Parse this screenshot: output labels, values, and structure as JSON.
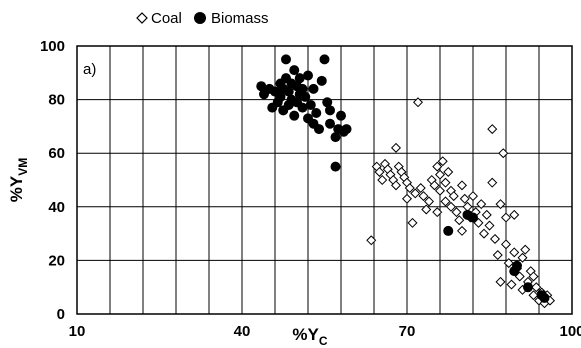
{
  "chart_data": {
    "type": "scatter",
    "panel_label": "a)",
    "xlabel_prefix": "%Y",
    "xlabel_sub": "C",
    "ylabel_prefix": "%Y",
    "ylabel_sub": "VM",
    "xlim": [
      10,
      100
    ],
    "ylim": [
      0,
      100
    ],
    "x_ticks": [
      10,
      40,
      70,
      100
    ],
    "x_ticks_labels": [
      "10",
      "40",
      "70",
      "100"
    ],
    "x_gridlines": [
      10,
      16,
      22,
      28,
      34,
      40,
      46,
      52,
      58,
      64,
      70,
      76,
      82,
      88,
      94,
      100
    ],
    "y_ticks": [
      0,
      20,
      40,
      60,
      80,
      100
    ],
    "y_ticks_labels": [
      "0",
      "20",
      "40",
      "60",
      "80",
      "100"
    ],
    "grid": true,
    "legend_position": "top-left",
    "series": [
      {
        "name": "Coal",
        "marker": "open-diamond",
        "color": "#000000",
        "points": [
          [
            63.5,
            27.5
          ],
          [
            64.5,
            55
          ],
          [
            65,
            53
          ],
          [
            65.5,
            50
          ],
          [
            66,
            56
          ],
          [
            66.5,
            54
          ],
          [
            67,
            52
          ],
          [
            67.5,
            50
          ],
          [
            68,
            62
          ],
          [
            68,
            48
          ],
          [
            68.5,
            55
          ],
          [
            69,
            53
          ],
          [
            69.5,
            51
          ],
          [
            70,
            49
          ],
          [
            70,
            43
          ],
          [
            70.5,
            47
          ],
          [
            71,
            34
          ],
          [
            71.5,
            45
          ],
          [
            72,
            79
          ],
          [
            72.5,
            47
          ],
          [
            73,
            44
          ],
          [
            73.5,
            39
          ],
          [
            74,
            42
          ],
          [
            74.5,
            50
          ],
          [
            75,
            48
          ],
          [
            75.5,
            55
          ],
          [
            75.5,
            38
          ],
          [
            76,
            46
          ],
          [
            76,
            52
          ],
          [
            76.5,
            57
          ],
          [
            77,
            49
          ],
          [
            77,
            42
          ],
          [
            77.5,
            53
          ],
          [
            78,
            46
          ],
          [
            78,
            40
          ],
          [
            78.5,
            44
          ],
          [
            79,
            38
          ],
          [
            79.5,
            35
          ],
          [
            80,
            48
          ],
          [
            80,
            31
          ],
          [
            80.5,
            43
          ],
          [
            81,
            40
          ],
          [
            81.5,
            36
          ],
          [
            82,
            44
          ],
          [
            82.5,
            38
          ],
          [
            83,
            34
          ],
          [
            83.5,
            41
          ],
          [
            84,
            30
          ],
          [
            84.5,
            37
          ],
          [
            85,
            33
          ],
          [
            85.5,
            69
          ],
          [
            85.5,
            49
          ],
          [
            86,
            28
          ],
          [
            86.5,
            22
          ],
          [
            87,
            41
          ],
          [
            87,
            12
          ],
          [
            87.5,
            60
          ],
          [
            88,
            36
          ],
          [
            88,
            26
          ],
          [
            88.5,
            19
          ],
          [
            89,
            11
          ],
          [
            89.5,
            37
          ],
          [
            89.5,
            23
          ],
          [
            90,
            17
          ],
          [
            90.5,
            14
          ],
          [
            91,
            21
          ],
          [
            91,
            9
          ],
          [
            91.5,
            24
          ],
          [
            92,
            12
          ],
          [
            92.5,
            16
          ],
          [
            93,
            7
          ],
          [
            93,
            14
          ],
          [
            93.5,
            10
          ],
          [
            94,
            5
          ],
          [
            94.5,
            8
          ],
          [
            95,
            4
          ],
          [
            95.5,
            7
          ],
          [
            96,
            5
          ]
        ]
      },
      {
        "name": "Biomass",
        "marker": "filled-circle",
        "color": "#000000",
        "points": [
          [
            43.5,
            85
          ],
          [
            44,
            82
          ],
          [
            45,
            84
          ],
          [
            45.5,
            77
          ],
          [
            46,
            83
          ],
          [
            46.5,
            79
          ],
          [
            47,
            86
          ],
          [
            47,
            81
          ],
          [
            47.5,
            84
          ],
          [
            47.5,
            76
          ],
          [
            48,
            95
          ],
          [
            48,
            88
          ],
          [
            48.5,
            83
          ],
          [
            48.5,
            78
          ],
          [
            49,
            86
          ],
          [
            49,
            80
          ],
          [
            49.5,
            91
          ],
          [
            49.5,
            74
          ],
          [
            50,
            85
          ],
          [
            50,
            79
          ],
          [
            50.5,
            82
          ],
          [
            50.5,
            88
          ],
          [
            51,
            77
          ],
          [
            51,
            84
          ],
          [
            51.5,
            81
          ],
          [
            52,
            89
          ],
          [
            52,
            73
          ],
          [
            52.5,
            78
          ],
          [
            53,
            84
          ],
          [
            53,
            71
          ],
          [
            53.5,
            75
          ],
          [
            54,
            69
          ],
          [
            54.5,
            87
          ],
          [
            55,
            95
          ],
          [
            55.5,
            79
          ],
          [
            56,
            76
          ],
          [
            56,
            71
          ],
          [
            57,
            66
          ],
          [
            57,
            55
          ],
          [
            57.5,
            69
          ],
          [
            58,
            74
          ],
          [
            58.5,
            68
          ],
          [
            59,
            69
          ],
          [
            77.5,
            31
          ],
          [
            81,
            37
          ],
          [
            82,
            36
          ],
          [
            89.5,
            16
          ],
          [
            90,
            18
          ],
          [
            92,
            10
          ],
          [
            94.5,
            7
          ],
          [
            95,
            6
          ]
        ]
      }
    ]
  }
}
